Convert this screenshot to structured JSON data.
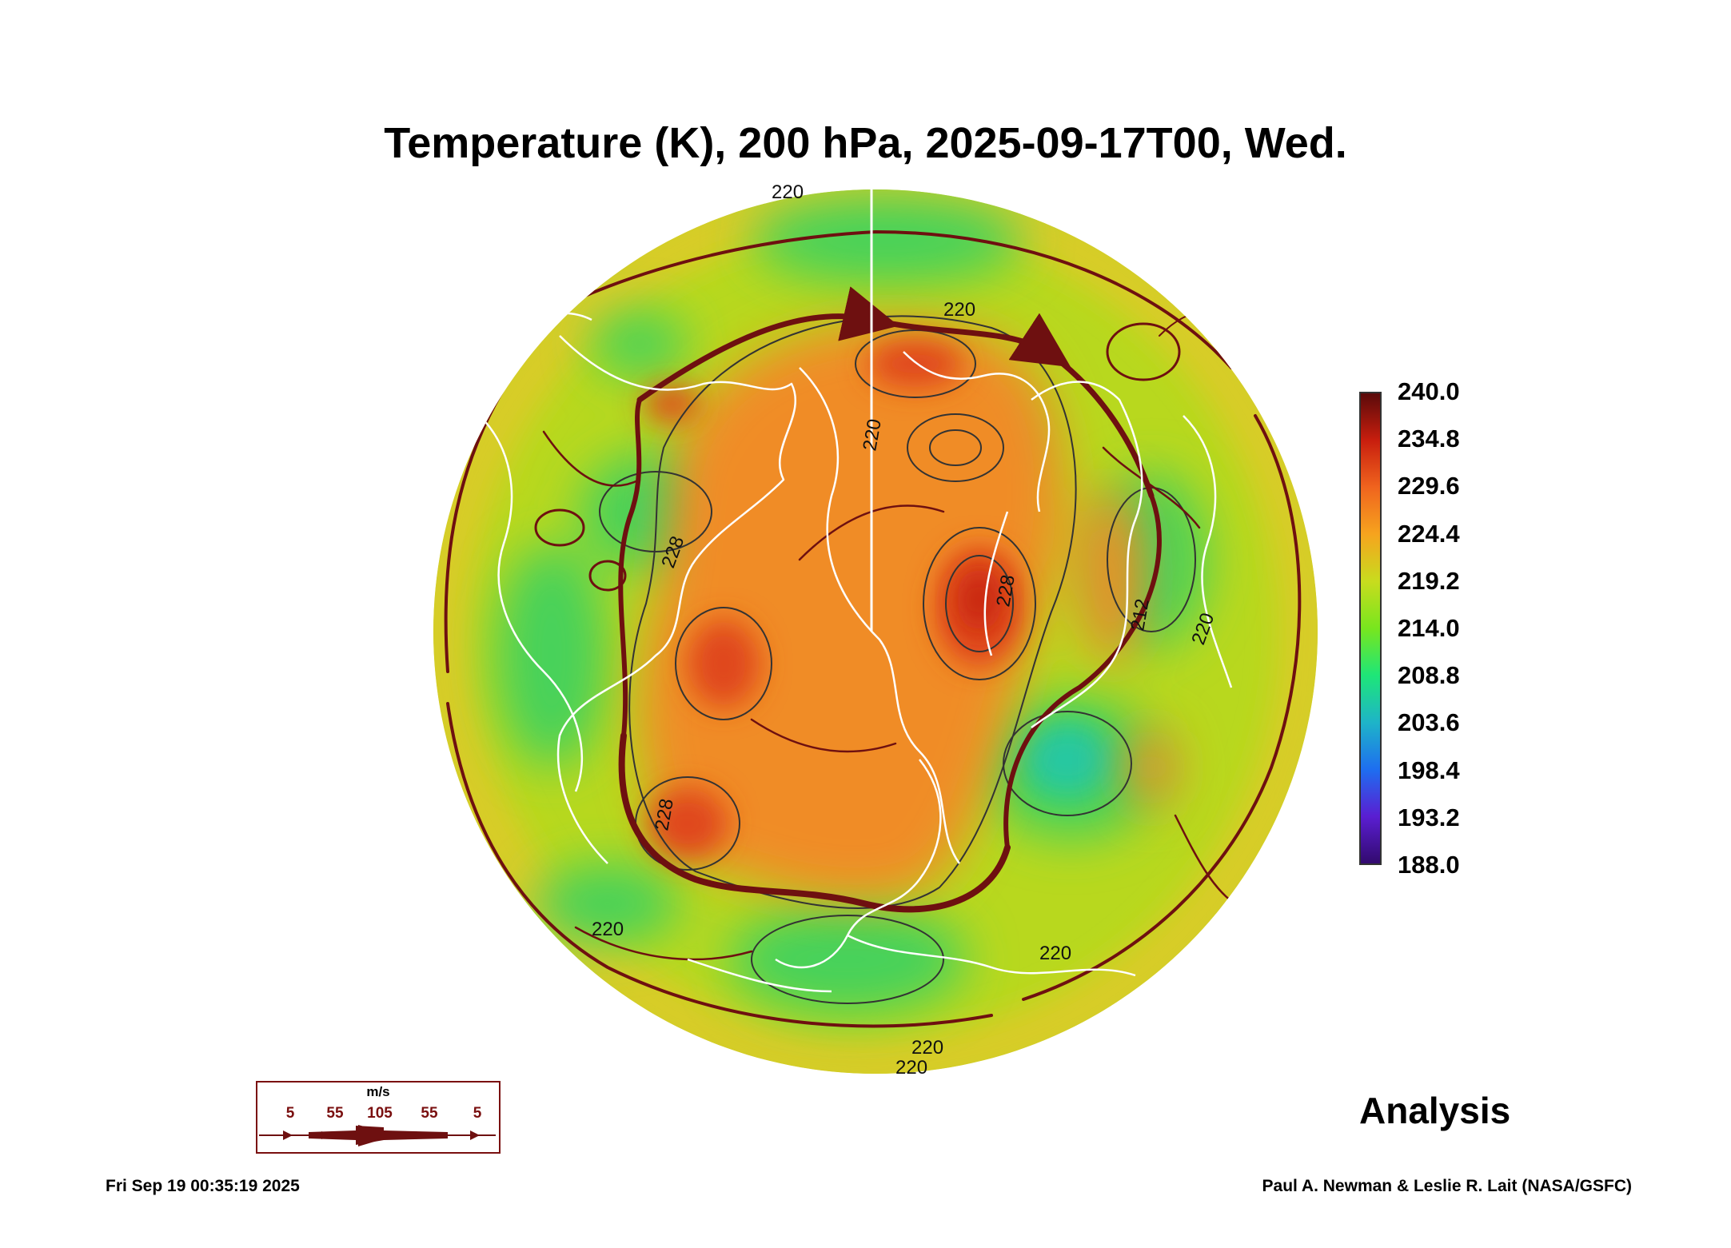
{
  "title": "Temperature (K), 200 hPa, 2025-09-17T00, Wed.",
  "colorbar": {
    "labels": [
      "240.0",
      "234.8",
      "229.6",
      "224.4",
      "219.2",
      "214.0",
      "208.8",
      "203.6",
      "198.4",
      "193.2",
      "188.0"
    ],
    "colors": [
      "#5a0a0a",
      "#c81e0e",
      "#f0641e",
      "#f6a41e",
      "#c8dc1e",
      "#78e61e",
      "#1ee678",
      "#1eb4c8",
      "#1e6ef0",
      "#5a1ed2",
      "#320a6e"
    ]
  },
  "map": {
    "contour_labels": [
      "220",
      "220",
      "220",
      "220",
      "220",
      "228",
      "228",
      "228",
      "212",
      "220",
      "220",
      "220"
    ],
    "colors": {
      "disk_base": "#b8d81e",
      "warm_core": "#f08c28",
      "hot_spot": "#e0461a",
      "cool_zone": "#46d25a",
      "coast": "#ffffff",
      "streamline": "#6e1010"
    }
  },
  "legend": {
    "unit": "m/s",
    "values": [
      "5",
      "55",
      "105",
      "55",
      "5"
    ]
  },
  "analysis_label": "Analysis",
  "footer": {
    "timestamp": "Fri Sep 19 00:35:19 2025",
    "credit": "Paul A. Newman & Leslie R. Lait (NASA/GSFC)"
  }
}
